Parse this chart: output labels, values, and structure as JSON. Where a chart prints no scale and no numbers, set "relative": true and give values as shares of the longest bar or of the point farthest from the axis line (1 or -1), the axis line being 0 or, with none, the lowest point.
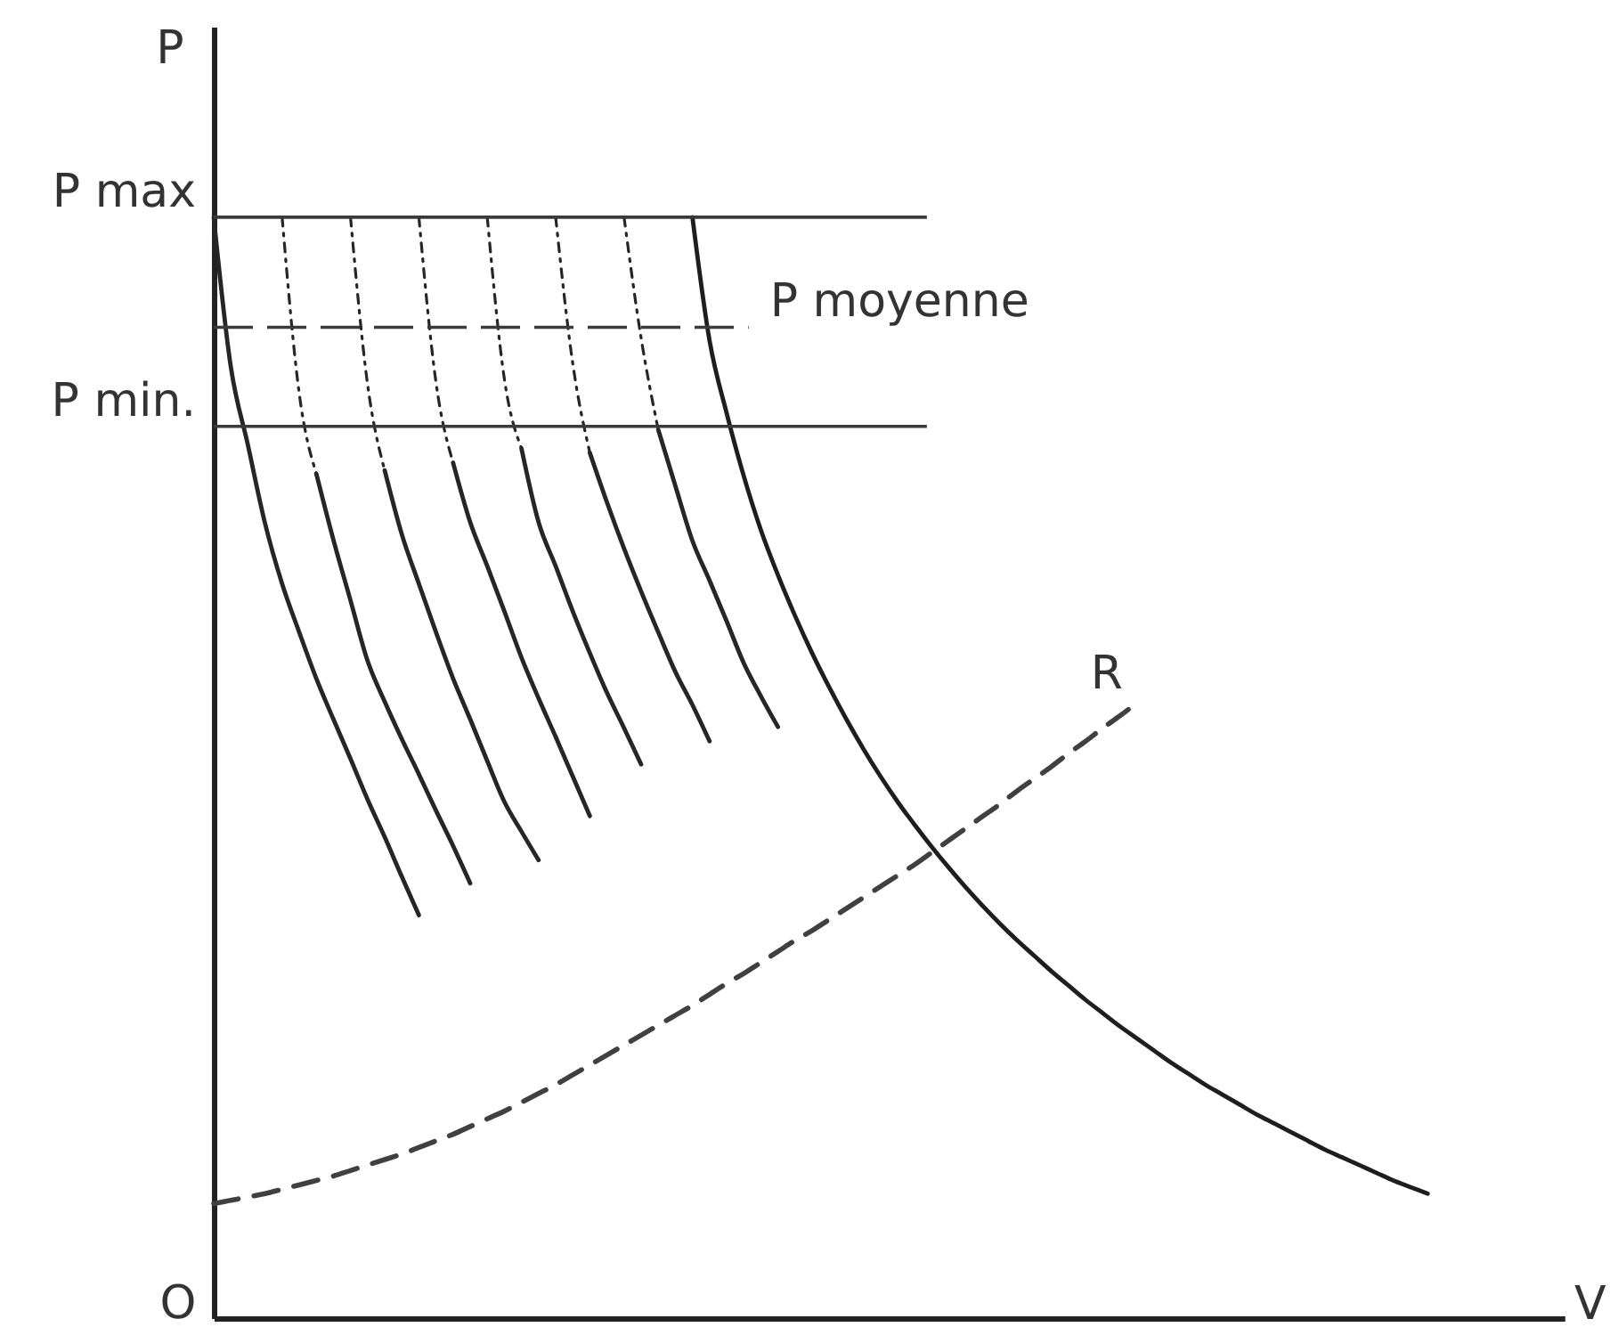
{
  "chart_data": {
    "type": "line",
    "relative": true,
    "xlabel": "V",
    "ylabel": "P",
    "categories": [
      null,
      null,
      null,
      null,
      null,
      null,
      null,
      null,
      null,
      null,
      null,
      null,
      null,
      null,
      null,
      null,
      null,
      null,
      null,
      null,
      null,
      null,
      null,
      null,
      null,
      null,
      null,
      null,
      null,
      null,
      null,
      null,
      null,
      null,
      null,
      null,
      null,
      null,
      null,
      null,
      null,
      null,
      null,
      null,
      null,
      null,
      null,
      null,
      null,
      null,
      null,
      null,
      null,
      null,
      null,
      null,
      null,
      null,
      null,
      null,
      null,
      null,
      null,
      null,
      null,
      null,
      null,
      null,
      null,
      null,
      null,
      null,
      null,
      null,
      null,
      null,
      null,
      null,
      null,
      null
    ],
    "series": [
      {
        "color": "#262626",
        "line_style": "solid",
        "values": [
          1,
          0.864,
          0.793,
          0.722,
          0.667,
          0.623,
          0.581,
          0.544,
          0.508,
          0.471,
          0.437,
          0.401,
          0.366,
          null,
          null,
          null,
          null,
          null,
          null,
          null,
          null,
          null,
          null,
          null,
          null,
          null,
          null,
          null,
          null,
          null,
          null,
          null,
          null,
          null,
          null,
          null,
          null,
          null,
          null,
          null,
          null,
          null,
          null,
          null,
          null,
          null,
          null,
          null,
          null,
          null,
          null,
          null,
          null,
          null,
          null,
          null,
          null,
          null,
          null,
          null,
          null,
          null,
          null,
          null,
          null,
          null,
          null,
          null,
          null,
          null,
          null,
          null,
          null,
          null,
          null,
          null,
          null,
          null,
          null,
          null
        ]
      },
      {
        "color": "#262626",
        "line_style": "dotted",
        "values": [
          null,
          null,
          null,
          null,
          1,
          0.84,
          0.767,
          null,
          null,
          null,
          null,
          null,
          null,
          null,
          null,
          null,
          null,
          null,
          null,
          null,
          null,
          null,
          null,
          null,
          null,
          null,
          null,
          null,
          null,
          null,
          null,
          null,
          null,
          null,
          null,
          null,
          null,
          null,
          null,
          null,
          null,
          null,
          null,
          null,
          null,
          null,
          null,
          null,
          null,
          null,
          null,
          null,
          null,
          null,
          null,
          null,
          null,
          null,
          null,
          null,
          null,
          null,
          null,
          null,
          null,
          null,
          null,
          null,
          null,
          null,
          null,
          null,
          null,
          null,
          null,
          null,
          null,
          null,
          null,
          null
        ]
      },
      {
        "color": "#262626",
        "line_style": "solid",
        "values": [
          null,
          null,
          null,
          null,
          null,
          null,
          0.767,
          0.707,
          0.652,
          0.597,
          0.56,
          0.526,
          0.494,
          0.461,
          0.429,
          0.395,
          null,
          null,
          null,
          null,
          null,
          null,
          null,
          null,
          null,
          null,
          null,
          null,
          null,
          null,
          null,
          null,
          null,
          null,
          null,
          null,
          null,
          null,
          null,
          null,
          null,
          null,
          null,
          null,
          null,
          null,
          null,
          null,
          null,
          null,
          null,
          null,
          null,
          null,
          null,
          null,
          null,
          null,
          null,
          null,
          null,
          null,
          null,
          null,
          null,
          null,
          null,
          null,
          null,
          null,
          null,
          null,
          null,
          null,
          null,
          null,
          null,
          null,
          null,
          null
        ]
      },
      {
        "color": "#262626",
        "line_style": "dotted",
        "values": [
          null,
          null,
          null,
          null,
          null,
          null,
          null,
          null,
          1,
          0.848,
          0.77,
          null,
          null,
          null,
          null,
          null,
          null,
          null,
          null,
          null,
          null,
          null,
          null,
          null,
          null,
          null,
          null,
          null,
          null,
          null,
          null,
          null,
          null,
          null,
          null,
          null,
          null,
          null,
          null,
          null,
          null,
          null,
          null,
          null,
          null,
          null,
          null,
          null,
          null,
          null,
          null,
          null,
          null,
          null,
          null,
          null,
          null,
          null,
          null,
          null,
          null,
          null,
          null,
          null,
          null,
          null,
          null,
          null,
          null,
          null,
          null,
          null,
          null,
          null,
          null,
          null,
          null,
          null,
          null,
          null
        ]
      },
      {
        "color": "#262626",
        "line_style": "solid",
        "values": [
          null,
          null,
          null,
          null,
          null,
          null,
          null,
          null,
          null,
          null,
          0.77,
          0.712,
          0.667,
          0.623,
          0.581,
          0.544,
          0.506,
          0.469,
          0.442,
          0.416,
          null,
          null,
          null,
          null,
          null,
          null,
          null,
          null,
          null,
          null,
          null,
          null,
          null,
          null,
          null,
          null,
          null,
          null,
          null,
          null,
          null,
          null,
          null,
          null,
          null,
          null,
          null,
          null,
          null,
          null,
          null,
          null,
          null,
          null,
          null,
          null,
          null,
          null,
          null,
          null,
          null,
          null,
          null,
          null,
          null,
          null,
          null,
          null,
          null,
          null,
          null,
          null,
          null,
          null,
          null,
          null,
          null,
          null,
          null,
          null
        ]
      },
      {
        "color": "#262626",
        "line_style": "dotted",
        "values": [
          null,
          null,
          null,
          null,
          null,
          null,
          null,
          null,
          null,
          null,
          null,
          null,
          1,
          0.85,
          0.777,
          null,
          null,
          null,
          null,
          null,
          null,
          null,
          null,
          null,
          null,
          null,
          null,
          null,
          null,
          null,
          null,
          null,
          null,
          null,
          null,
          null,
          null,
          null,
          null,
          null,
          null,
          null,
          null,
          null,
          null,
          null,
          null,
          null,
          null,
          null,
          null,
          null,
          null,
          null,
          null,
          null,
          null,
          null,
          null,
          null,
          null,
          null,
          null,
          null,
          null,
          null,
          null,
          null,
          null,
          null,
          null,
          null,
          null,
          null,
          null,
          null,
          null,
          null,
          null,
          null
        ]
      },
      {
        "color": "#262626",
        "line_style": "solid",
        "values": [
          null,
          null,
          null,
          null,
          null,
          null,
          null,
          null,
          null,
          null,
          null,
          null,
          null,
          null,
          0.777,
          0.723,
          0.683,
          0.642,
          0.6,
          0.563,
          0.528,
          0.492,
          0.456,
          null,
          null,
          null,
          null,
          null,
          null,
          null,
          null,
          null,
          null,
          null,
          null,
          null,
          null,
          null,
          null,
          null,
          null,
          null,
          null,
          null,
          null,
          null,
          null,
          null,
          null,
          null,
          null,
          null,
          null,
          null,
          null,
          null,
          null,
          null,
          null,
          null,
          null,
          null,
          null,
          null,
          null,
          null,
          null,
          null,
          null,
          null,
          null,
          null,
          null,
          null,
          null,
          null,
          null,
          null,
          null,
          null
        ]
      },
      {
        "color": "#262626",
        "line_style": "dotted",
        "values": [
          null,
          null,
          null,
          null,
          null,
          null,
          null,
          null,
          null,
          null,
          null,
          null,
          null,
          null,
          null,
          null,
          1,
          0.853,
          0.79,
          null,
          null,
          null,
          null,
          null,
          null,
          null,
          null,
          null,
          null,
          null,
          null,
          null,
          null,
          null,
          null,
          null,
          null,
          null,
          null,
          null,
          null,
          null,
          null,
          null,
          null,
          null,
          null,
          null,
          null,
          null,
          null,
          null,
          null,
          null,
          null,
          null,
          null,
          null,
          null,
          null,
          null,
          null,
          null,
          null,
          null,
          null,
          null,
          null,
          null,
          null,
          null,
          null,
          null,
          null,
          null,
          null,
          null,
          null,
          null,
          null
        ]
      },
      {
        "color": "#262626",
        "line_style": "solid",
        "values": [
          null,
          null,
          null,
          null,
          null,
          null,
          null,
          null,
          null,
          null,
          null,
          null,
          null,
          null,
          null,
          null,
          null,
          null,
          0.79,
          0.723,
          0.683,
          0.642,
          0.604,
          0.568,
          0.536,
          0.503,
          null,
          null,
          null,
          null,
          null,
          null,
          null,
          null,
          null,
          null,
          null,
          null,
          null,
          null,
          null,
          null,
          null,
          null,
          null,
          null,
          null,
          null,
          null,
          null,
          null,
          null,
          null,
          null,
          null,
          null,
          null,
          null,
          null,
          null,
          null,
          null,
          null,
          null,
          null,
          null,
          null,
          null,
          null,
          null,
          null,
          null,
          null,
          null,
          null,
          null,
          null,
          null,
          null,
          null
        ]
      },
      {
        "color": "#262626",
        "line_style": "dotted",
        "values": [
          null,
          null,
          null,
          null,
          null,
          null,
          null,
          null,
          null,
          null,
          null,
          null,
          null,
          null,
          null,
          null,
          null,
          null,
          null,
          null,
          1,
          0.867,
          0.786,
          null,
          null,
          null,
          null,
          null,
          null,
          null,
          null,
          null,
          null,
          null,
          null,
          null,
          null,
          null,
          null,
          null,
          null,
          null,
          null,
          null,
          null,
          null,
          null,
          null,
          null,
          null,
          null,
          null,
          null,
          null,
          null,
          null,
          null,
          null,
          null,
          null,
          null,
          null,
          null,
          null,
          null,
          null,
          null,
          null,
          null,
          null,
          null,
          null,
          null,
          null,
          null,
          null,
          null,
          null,
          null,
          null
        ]
      },
      {
        "color": "#262626",
        "line_style": "solid",
        "values": [
          null,
          null,
          null,
          null,
          null,
          null,
          null,
          null,
          null,
          null,
          null,
          null,
          null,
          null,
          null,
          null,
          null,
          null,
          null,
          null,
          null,
          null,
          0.786,
          0.741,
          0.699,
          0.66,
          0.623,
          0.587,
          0.557,
          0.524,
          null,
          null,
          null,
          null,
          null,
          null,
          null,
          null,
          null,
          null,
          null,
          null,
          null,
          null,
          null,
          null,
          null,
          null,
          null,
          null,
          null,
          null,
          null,
          null,
          null,
          null,
          null,
          null,
          null,
          null,
          null,
          null,
          null,
          null,
          null,
          null,
          null,
          null,
          null,
          null,
          null,
          null,
          null,
          null,
          null,
          null,
          null,
          null,
          null,
          null
        ]
      },
      {
        "color": "#262626",
        "line_style": "dotted",
        "values": [
          null,
          null,
          null,
          null,
          null,
          null,
          null,
          null,
          null,
          null,
          null,
          null,
          null,
          null,
          null,
          null,
          null,
          null,
          null,
          null,
          null,
          null,
          null,
          null,
          1,
          0.89,
          0.807,
          null,
          null,
          null,
          null,
          null,
          null,
          null,
          null,
          null,
          null,
          null,
          null,
          null,
          null,
          null,
          null,
          null,
          null,
          null,
          null,
          null,
          null,
          null,
          null,
          null,
          null,
          null,
          null,
          null,
          null,
          null,
          null,
          null,
          null,
          null,
          null,
          null,
          null,
          null,
          null,
          null,
          null,
          null,
          null,
          null,
          null,
          null,
          null,
          null,
          null,
          null,
          null,
          null
        ]
      },
      {
        "color": "#262626",
        "line_style": "solid",
        "values": [
          null,
          null,
          null,
          null,
          null,
          null,
          null,
          null,
          null,
          null,
          null,
          null,
          null,
          null,
          null,
          null,
          null,
          null,
          null,
          null,
          null,
          null,
          null,
          null,
          null,
          null,
          0.807,
          0.756,
          0.706,
          0.67,
          0.633,
          0.595,
          0.565,
          0.537,
          null,
          null,
          null,
          null,
          null,
          null,
          null,
          null,
          null,
          null,
          null,
          null,
          null,
          null,
          null,
          null,
          null,
          null,
          null,
          null,
          null,
          null,
          null,
          null,
          null,
          null,
          null,
          null,
          null,
          null,
          null,
          null,
          null,
          null,
          null,
          null,
          null,
          null,
          null,
          null,
          null,
          null,
          null,
          null,
          null,
          null
        ]
      },
      {
        "color": "#1e1e1e",
        "line_style": "solid",
        "values": [
          null,
          null,
          null,
          null,
          null,
          null,
          null,
          null,
          null,
          null,
          null,
          null,
          null,
          null,
          null,
          null,
          null,
          null,
          null,
          null,
          null,
          null,
          null,
          null,
          null,
          null,
          null,
          null,
          1,
          0.888,
          0.822,
          0.765,
          0.716,
          0.675,
          0.638,
          0.604,
          0.573,
          0.544,
          0.517,
          0.492,
          0.469,
          0.448,
          0.428,
          0.409,
          0.391,
          0.374,
          0.358,
          0.343,
          0.329,
          0.315,
          0.302,
          0.289,
          0.277,
          0.265,
          0.254,
          0.243,
          0.232,
          0.222,
          0.212,
          0.203,
          0.194,
          0.185,
          0.177,
          0.169,
          0.161,
          0.153,
          0.146,
          0.139,
          0.132,
          0.125,
          0.119,
          0.113,
          null,
          null,
          null,
          null,
          null,
          null,
          null,
          null
        ]
      },
      {
        "name": "R",
        "color": "#404040",
        "line_style": "dashed",
        "values": [
          0.104,
          0.107,
          0.11,
          0.113,
          0.117,
          0.121,
          0.125,
          0.129,
          0.134,
          0.139,
          0.144,
          0.149,
          0.155,
          0.161,
          0.167,
          0.174,
          0.181,
          0.188,
          0.196,
          0.204,
          0.212,
          0.221,
          0.23,
          0.239,
          0.248,
          0.257,
          0.266,
          0.275,
          0.284,
          0.294,
          0.304,
          0.313,
          0.323,
          0.333,
          0.343,
          0.352,
          0.362,
          0.372,
          0.382,
          0.392,
          0.402,
          0.412,
          0.423,
          0.434,
          0.445,
          0.456,
          0.467,
          0.479,
          0.49,
          0.501,
          0.513,
          0.524,
          0.536,
          0.547,
          0.559,
          null,
          null,
          null,
          null,
          null,
          null,
          null,
          null,
          null,
          null,
          null,
          null,
          null,
          null,
          null,
          null,
          null,
          null,
          null,
          null,
          null,
          null,
          null,
          null,
          null
        ]
      }
    ],
    "ref_lines": [
      {
        "axis": "y",
        "value": 1,
        "label": "P max",
        "color": "#3a3a3a"
      },
      {
        "axis": "y",
        "value": 0.9,
        "label": "P moyenne",
        "color": "#3a3a3a",
        "line_style": "dashed"
      },
      {
        "axis": "y",
        "value": 0.81,
        "label": "P min.",
        "color": "#3a3a3a"
      }
    ],
    "annotations": [
      "O"
    ]
  }
}
